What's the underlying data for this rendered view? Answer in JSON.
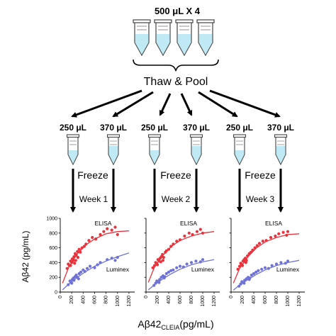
{
  "top_label": "500 μL X 4",
  "pool_label": "Thaw & Pool",
  "aliquot_labels": [
    "250 μL",
    "370 μL",
    "250 μL",
    "370 μL",
    "250 μL",
    "370 μL"
  ],
  "freeze_labels": [
    "Freeze",
    "Freeze",
    "Freeze"
  ],
  "week_labels": [
    "Week 1",
    "Week 2",
    "Week 3"
  ],
  "y_axis_label": "Aβ42 (pg/mL)",
  "x_axis_label_main": "Aβ42",
  "x_axis_label_sub": "CLEIA",
  "x_axis_label_unit": "(pg/mL)",
  "colors": {
    "elisa": "#e8323c",
    "luminex": "#6f73d6",
    "tube_liquid": "#bfe9f5",
    "tube_outline": "#444444"
  },
  "chart_data": [
    {
      "type": "scatter",
      "title": "",
      "xlabel": "Aβ42 CLEIA (pg/mL)",
      "ylabel": "Aβ42 (pg/mL)",
      "xlim": [
        0,
        1300
      ],
      "ylim": [
        0,
        1000
      ],
      "x_ticks": [
        "0",
        "200",
        "400",
        "600",
        "800",
        "1000",
        "1200"
      ],
      "y_ticks": [
        "0",
        "200",
        "400",
        "600",
        "800",
        "1000"
      ],
      "series": [
        {
          "name": "ELISA",
          "color": "#e8323c",
          "points": [
            [
              120,
              320
            ],
            [
              140,
              380
            ],
            [
              160,
              360
            ],
            [
              180,
              420
            ],
            [
              200,
              400
            ],
            [
              210,
              450
            ],
            [
              230,
              430
            ],
            [
              240,
              480
            ],
            [
              260,
              520
            ],
            [
              280,
              500
            ],
            [
              300,
              550
            ],
            [
              310,
              470
            ],
            [
              330,
              580
            ],
            [
              350,
              540
            ],
            [
              380,
              600
            ],
            [
              420,
              620
            ],
            [
              450,
              650
            ],
            [
              500,
              700
            ],
            [
              560,
              740
            ],
            [
              620,
              720
            ],
            [
              700,
              780
            ],
            [
              760,
              820
            ],
            [
              820,
              860
            ],
            [
              900,
              840
            ],
            [
              960,
              880
            ],
            [
              1000,
              780
            ],
            [
              250,
              390
            ],
            [
              180,
              360
            ],
            [
              270,
              430
            ]
          ],
          "fit": [
            [
              40,
              120
            ],
            [
              150,
              340
            ],
            [
              300,
              520
            ],
            [
              450,
              640
            ],
            [
              600,
              720
            ],
            [
              800,
              790
            ],
            [
              1000,
              820
            ],
            [
              1200,
              830
            ]
          ]
        },
        {
          "name": "Luminex",
          "color": "#6f73d6",
          "points": [
            [
              140,
              100
            ],
            [
              170,
              150
            ],
            [
              190,
              130
            ],
            [
              210,
              170
            ],
            [
              230,
              190
            ],
            [
              260,
              210
            ],
            [
              280,
              230
            ],
            [
              300,
              200
            ],
            [
              330,
              250
            ],
            [
              360,
              270
            ],
            [
              400,
              300
            ],
            [
              430,
              280
            ],
            [
              470,
              320
            ],
            [
              520,
              350
            ],
            [
              600,
              330
            ],
            [
              650,
              370
            ],
            [
              700,
              400
            ],
            [
              820,
              440
            ],
            [
              900,
              460
            ],
            [
              960,
              430
            ],
            [
              1000,
              470
            ],
            [
              240,
              160
            ],
            [
              320,
              180
            ],
            [
              200,
              120
            ]
          ],
          "fit": [
            [
              40,
              30
            ],
            [
              150,
              110
            ],
            [
              300,
              200
            ],
            [
              450,
              280
            ],
            [
              600,
              350
            ],
            [
              800,
              420
            ],
            [
              1000,
              480
            ],
            [
              1200,
              530
            ]
          ]
        }
      ]
    },
    {
      "type": "scatter",
      "title": "",
      "xlabel": "Aβ42 CLEIA (pg/mL)",
      "ylabel": "",
      "xlim": [
        0,
        1300
      ],
      "ylim": [
        0,
        1000
      ],
      "x_ticks": [
        "0",
        "200",
        "400",
        "600",
        "800",
        "1000",
        "1200"
      ],
      "series": [
        {
          "name": "ELISA",
          "color": "#e8323c",
          "points": [
            [
              120,
              330
            ],
            [
              150,
              360
            ],
            [
              170,
              400
            ],
            [
              190,
              380
            ],
            [
              210,
              440
            ],
            [
              230,
              420
            ],
            [
              250,
              460
            ],
            [
              270,
              480
            ],
            [
              290,
              510
            ],
            [
              310,
              470
            ],
            [
              340,
              540
            ],
            [
              360,
              560
            ],
            [
              400,
              580
            ],
            [
              440,
              620
            ],
            [
              480,
              650
            ],
            [
              540,
              690
            ],
            [
              600,
              710
            ],
            [
              680,
              760
            ],
            [
              760,
              800
            ],
            [
              820,
              780
            ],
            [
              900,
              820
            ],
            [
              960,
              850
            ],
            [
              1000,
              800
            ],
            [
              200,
              370
            ],
            [
              260,
              410
            ],
            [
              300,
              430
            ]
          ],
          "fit": [
            [
              40,
              130
            ],
            [
              150,
              340
            ],
            [
              300,
              500
            ],
            [
              450,
              620
            ],
            [
              600,
              700
            ],
            [
              800,
              760
            ],
            [
              1000,
              800
            ],
            [
              1200,
              820
            ]
          ]
        },
        {
          "name": "Luminex",
          "color": "#6f73d6",
          "points": [
            [
              140,
              90
            ],
            [
              170,
              120
            ],
            [
              190,
              150
            ],
            [
              210,
              140
            ],
            [
              240,
              170
            ],
            [
              270,
              200
            ],
            [
              300,
              220
            ],
            [
              330,
              210
            ],
            [
              360,
              250
            ],
            [
              400,
              270
            ],
            [
              440,
              290
            ],
            [
              480,
              300
            ],
            [
              540,
              330
            ],
            [
              600,
              350
            ],
            [
              660,
              340
            ],
            [
              720,
              380
            ],
            [
              800,
              400
            ],
            [
              880,
              420
            ],
            [
              960,
              410
            ],
            [
              1000,
              440
            ],
            [
              230,
              130
            ],
            [
              320,
              190
            ]
          ],
          "fit": [
            [
              40,
              30
            ],
            [
              150,
              100
            ],
            [
              300,
              180
            ],
            [
              450,
              250
            ],
            [
              600,
              310
            ],
            [
              800,
              370
            ],
            [
              1000,
              410
            ],
            [
              1200,
              440
            ]
          ]
        }
      ]
    },
    {
      "type": "scatter",
      "title": "",
      "xlabel": "Aβ42 CLEIA (pg/mL)",
      "ylabel": "",
      "xlim": [
        0,
        1300
      ],
      "ylim": [
        0,
        1000
      ],
      "x_ticks": [
        "0",
        "200",
        "400",
        "600",
        "800",
        "1000",
        "1200"
      ],
      "series": [
        {
          "name": "ELISA",
          "color": "#e8323c",
          "points": [
            [
              120,
              310
            ],
            [
              150,
              350
            ],
            [
              170,
              390
            ],
            [
              190,
              370
            ],
            [
              210,
              420
            ],
            [
              230,
              440
            ],
            [
              250,
              460
            ],
            [
              270,
              430
            ],
            [
              290,
              490
            ],
            [
              320,
              520
            ],
            [
              350,
              540
            ],
            [
              380,
              570
            ],
            [
              420,
              600
            ],
            [
              460,
              630
            ],
            [
              500,
              660
            ],
            [
              560,
              690
            ],
            [
              620,
              700
            ],
            [
              700,
              740
            ],
            [
              780,
              760
            ],
            [
              840,
              790
            ],
            [
              920,
              810
            ],
            [
              980,
              770
            ],
            [
              1000,
              820
            ],
            [
              200,
              360
            ],
            [
              260,
              400
            ]
          ],
          "fit": [
            [
              40,
              120
            ],
            [
              150,
              320
            ],
            [
              300,
              480
            ],
            [
              450,
              600
            ],
            [
              600,
              680
            ],
            [
              800,
              740
            ],
            [
              1000,
              780
            ],
            [
              1200,
              790
            ]
          ]
        },
        {
          "name": "Luminex",
          "color": "#6f73d6",
          "points": [
            [
              140,
              80
            ],
            [
              170,
              110
            ],
            [
              190,
              140
            ],
            [
              210,
              130
            ],
            [
              240,
              160
            ],
            [
              270,
              180
            ],
            [
              300,
              200
            ],
            [
              330,
              190
            ],
            [
              360,
              230
            ],
            [
              400,
              250
            ],
            [
              440,
              270
            ],
            [
              480,
              290
            ],
            [
              540,
              310
            ],
            [
              600,
              330
            ],
            [
              660,
              320
            ],
            [
              720,
              360
            ],
            [
              800,
              380
            ],
            [
              880,
              400
            ],
            [
              960,
              390
            ],
            [
              1000,
              420
            ],
            [
              230,
              120
            ],
            [
              320,
              170
            ]
          ],
          "fit": [
            [
              40,
              25
            ],
            [
              150,
              95
            ],
            [
              300,
              170
            ],
            [
              450,
              240
            ],
            [
              600,
              300
            ],
            [
              800,
              360
            ],
            [
              1000,
              400
            ],
            [
              1200,
              430
            ]
          ]
        }
      ]
    }
  ]
}
